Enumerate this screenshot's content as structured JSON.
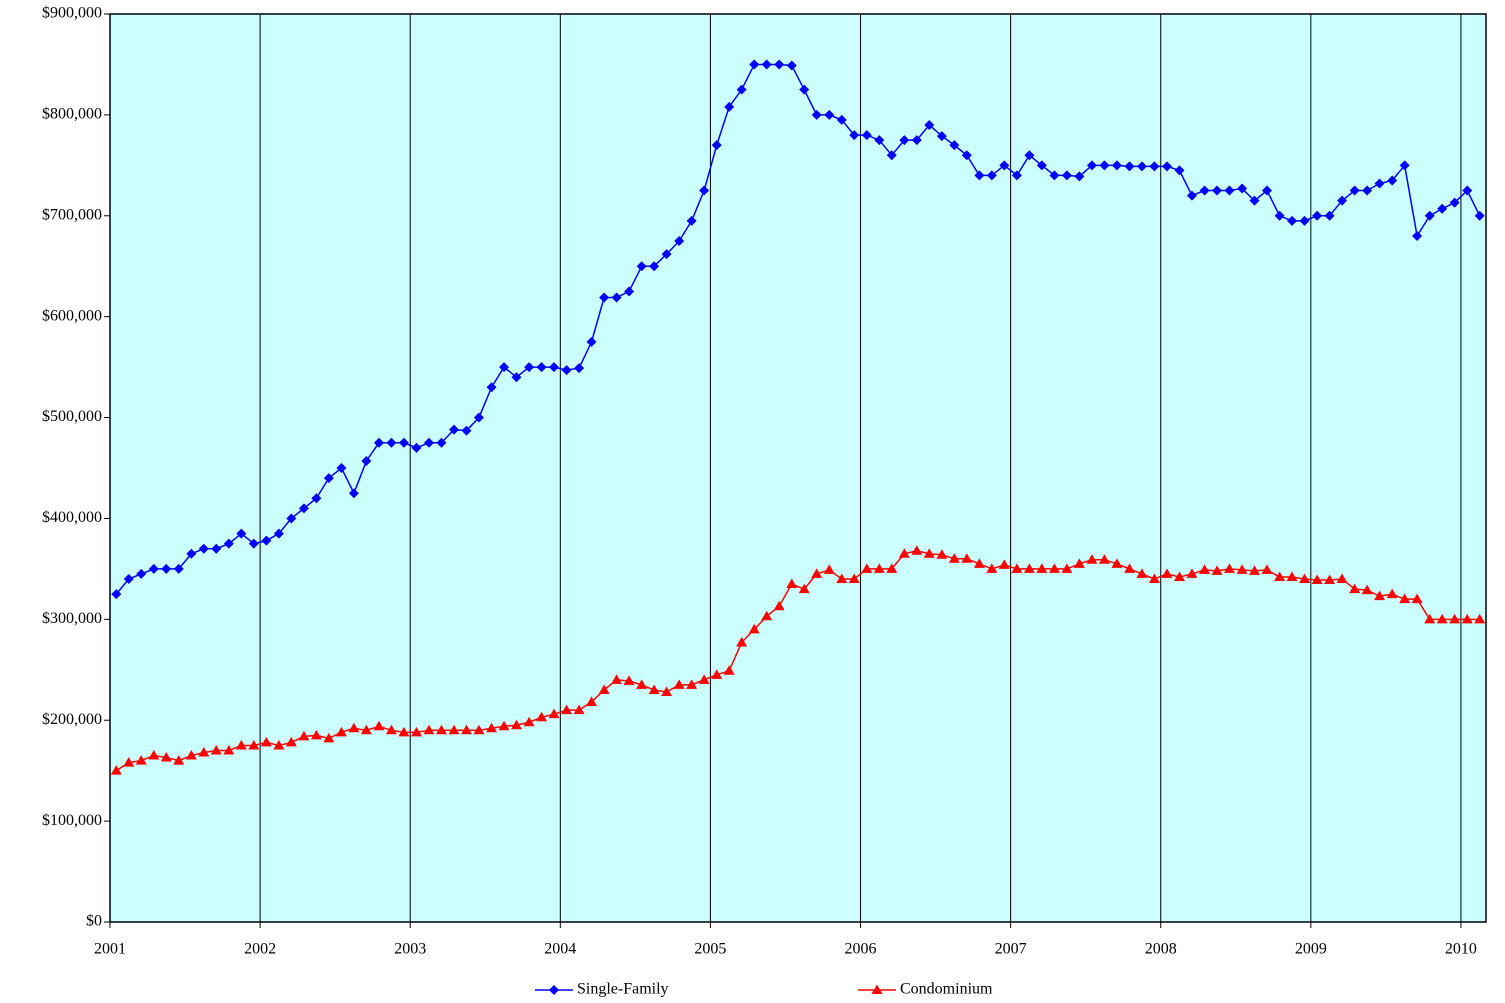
{
  "chart_data": {
    "type": "line",
    "x": [
      2001.042,
      2001.125,
      2001.208,
      2001.292,
      2001.375,
      2001.458,
      2001.542,
      2001.625,
      2001.708,
      2001.792,
      2001.875,
      2001.958,
      2002.042,
      2002.125,
      2002.208,
      2002.292,
      2002.375,
      2002.458,
      2002.542,
      2002.625,
      2002.708,
      2002.792,
      2002.875,
      2002.958,
      2003.042,
      2003.125,
      2003.208,
      2003.292,
      2003.375,
      2003.458,
      2003.542,
      2003.625,
      2003.708,
      2003.792,
      2003.875,
      2003.958,
      2004.042,
      2004.125,
      2004.208,
      2004.292,
      2004.375,
      2004.458,
      2004.542,
      2004.625,
      2004.708,
      2004.792,
      2004.875,
      2004.958,
      2005.042,
      2005.125,
      2005.208,
      2005.292,
      2005.375,
      2005.458,
      2005.542,
      2005.625,
      2005.708,
      2005.792,
      2005.875,
      2005.958,
      2006.042,
      2006.125,
      2006.208,
      2006.292,
      2006.375,
      2006.458,
      2006.542,
      2006.625,
      2006.708,
      2006.792,
      2006.875,
      2006.958,
      2007.042,
      2007.125,
      2007.208,
      2007.292,
      2007.375,
      2007.458,
      2007.542,
      2007.625,
      2007.708,
      2007.792,
      2007.875,
      2007.958,
      2008.042,
      2008.125,
      2008.208,
      2008.292,
      2008.375,
      2008.458,
      2008.542,
      2008.625,
      2008.708,
      2008.792,
      2008.875,
      2008.958,
      2009.042,
      2009.125,
      2009.208,
      2009.292,
      2009.375,
      2009.458,
      2009.542,
      2009.625,
      2009.708,
      2009.792,
      2009.875,
      2009.958,
      2010.042,
      2010.125
    ],
    "series": [
      {
        "name": "Single-Family",
        "color": "#0000ff",
        "marker": "diamond",
        "values": [
          325000,
          340000,
          345000,
          350000,
          350000,
          350000,
          365000,
          370000,
          370000,
          375000,
          385000,
          375000,
          378000,
          385000,
          400000,
          410000,
          420000,
          440000,
          450000,
          425000,
          457000,
          475000,
          475000,
          475000,
          470000,
          475000,
          475000,
          488000,
          487000,
          500000,
          530000,
          550000,
          540000,
          550000,
          550000,
          550000,
          547000,
          549000,
          575000,
          619000,
          619000,
          625000,
          650000,
          650000,
          662000,
          675000,
          695000,
          725000,
          770000,
          808000,
          825000,
          850000,
          850000,
          850000,
          849000,
          825000,
          800000,
          800000,
          795000,
          780000,
          780000,
          775000,
          760000,
          775000,
          775000,
          790000,
          779000,
          770000,
          760000,
          740000,
          740000,
          750000,
          740000,
          760000,
          750000,
          740000,
          740000,
          739000,
          750000,
          750000,
          750000,
          749000,
          749000,
          749000,
          749000,
          745000,
          720000,
          725000,
          725000,
          725000,
          727000,
          715000,
          725000,
          700000,
          695000,
          695000,
          700000,
          700000,
          715000,
          725000,
          725000,
          732000,
          735000,
          750000,
          680000,
          700000,
          707000,
          713000,
          725000,
          700000
        ]
      },
      {
        "name": "Condominium",
        "color": "#ff0000",
        "marker": "triangle",
        "values": [
          150000,
          158000,
          160000,
          165000,
          163000,
          160000,
          165000,
          168000,
          170000,
          170000,
          175000,
          175000,
          178000,
          175000,
          178000,
          184000,
          185000,
          182000,
          188000,
          192000,
          190000,
          194000,
          190000,
          188000,
          188000,
          190000,
          190000,
          190000,
          190000,
          190000,
          192000,
          194000,
          195000,
          198000,
          203000,
          206000,
          210000,
          210000,
          218000,
          230000,
          240000,
          239000,
          235000,
          230000,
          228000,
          235000,
          235000,
          240000,
          245000,
          249000,
          277000,
          290000,
          303000,
          313000,
          335000,
          330000,
          345000,
          349000,
          340000,
          340000,
          350000,
          350000,
          350000,
          365000,
          368000,
          365000,
          364000,
          360000,
          360000,
          355000,
          350000,
          354000,
          350000,
          350000,
          350000,
          350000,
          350000,
          355000,
          359000,
          359000,
          355000,
          350000,
          345000,
          340000,
          345000,
          342000,
          345000,
          349000,
          348000,
          350000,
          349000,
          348000,
          349000,
          342000,
          342000,
          340000,
          339000,
          339000,
          340000,
          330000,
          329000,
          323000,
          325000,
          320000,
          320000,
          300000,
          300000,
          300000,
          300000,
          300000
        ]
      }
    ],
    "xlim": [
      2001,
      2010.167
    ],
    "xticks": [
      2001,
      2002,
      2003,
      2004,
      2005,
      2006,
      2007,
      2008,
      2009,
      2010
    ],
    "ylim": [
      0,
      900000
    ],
    "yticks": [
      {
        "value": 0,
        "label": "$0"
      },
      {
        "value": 100000,
        "label": "$100,000"
      },
      {
        "value": 200000,
        "label": "$200,000"
      },
      {
        "value": 300000,
        "label": "$300,000"
      },
      {
        "value": 400000,
        "label": "$400,000"
      },
      {
        "value": 500000,
        "label": "$500,000"
      },
      {
        "value": 600000,
        "label": "$600,000"
      },
      {
        "value": 700000,
        "label": "$700,000"
      },
      {
        "value": 800000,
        "label": "$800,000"
      },
      {
        "value": 900000,
        "label": "$900,000"
      }
    ],
    "grid": "x",
    "background": "#ccffff",
    "legend": "bottom"
  }
}
